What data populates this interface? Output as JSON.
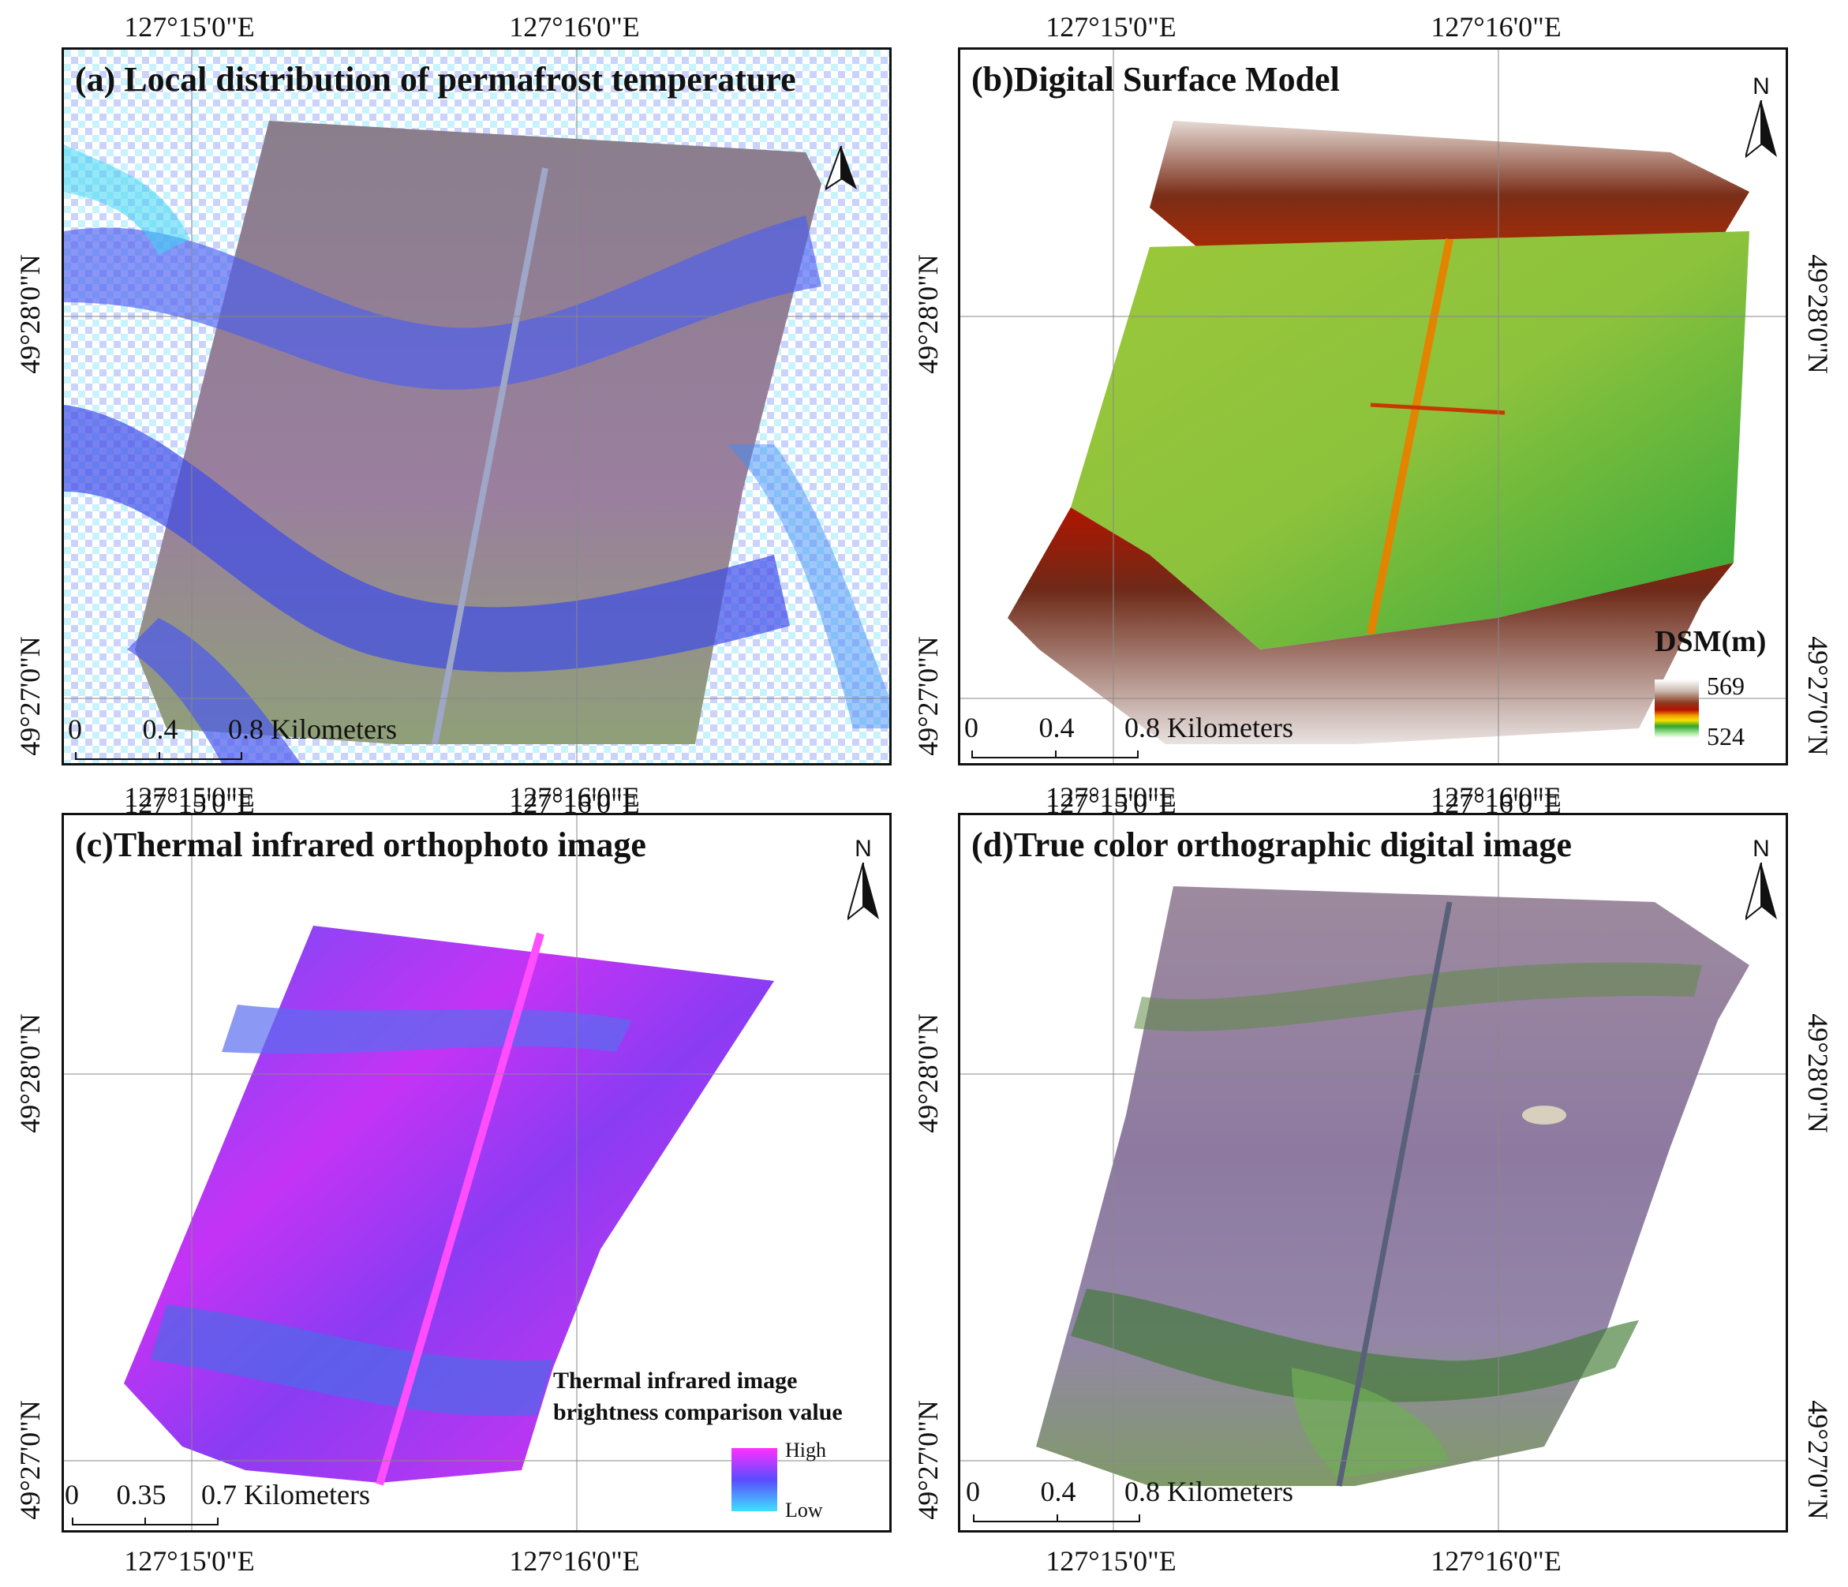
{
  "coords": {
    "lon_left": "127°15'0\"E",
    "lon_right": "127°16'0\"E",
    "lat_upper": "49°28'0\"N",
    "lat_lower": "49°27'0\"N"
  },
  "panels": {
    "a": {
      "title": "(a) Local distribution of permafrost temperature",
      "north_letter": "N",
      "scale": {
        "zero": "0",
        "mid": "0.4",
        "end_label": "0.8 Kilometers"
      }
    },
    "b": {
      "title": "(b)Digital Surface Model",
      "north_letter": "N",
      "scale": {
        "zero": "0",
        "mid": "0.4",
        "end_label": "0.8 Kilometers"
      },
      "legend": {
        "title": "DSM(m)",
        "max": "569",
        "min": "524",
        "colors": [
          "#ffffff",
          "#c9b8b0",
          "#8c3a1e",
          "#b80f00",
          "#f0a000",
          "#f6e000",
          "#2fa52f",
          "#a7e8a0",
          "#ffffff"
        ]
      }
    },
    "c": {
      "title": "(c)Thermal infrared orthophoto image",
      "north_letter": "N",
      "scale": {
        "zero": "0",
        "mid": "0.35",
        "end_label": "0.7 Kilometers"
      },
      "legend": {
        "title_line1": "Thermal infrared image",
        "title_line2": "brightness comparison value",
        "high": "High",
        "low": "Low",
        "colors": [
          "#ff30ff",
          "#5a4bff",
          "#40e0ff"
        ]
      }
    },
    "d": {
      "title": "(d)True color orthographic digital image",
      "north_letter": "N",
      "scale": {
        "zero": "0",
        "mid": "0.4",
        "end_label": "0.8 Kilometers"
      }
    }
  }
}
